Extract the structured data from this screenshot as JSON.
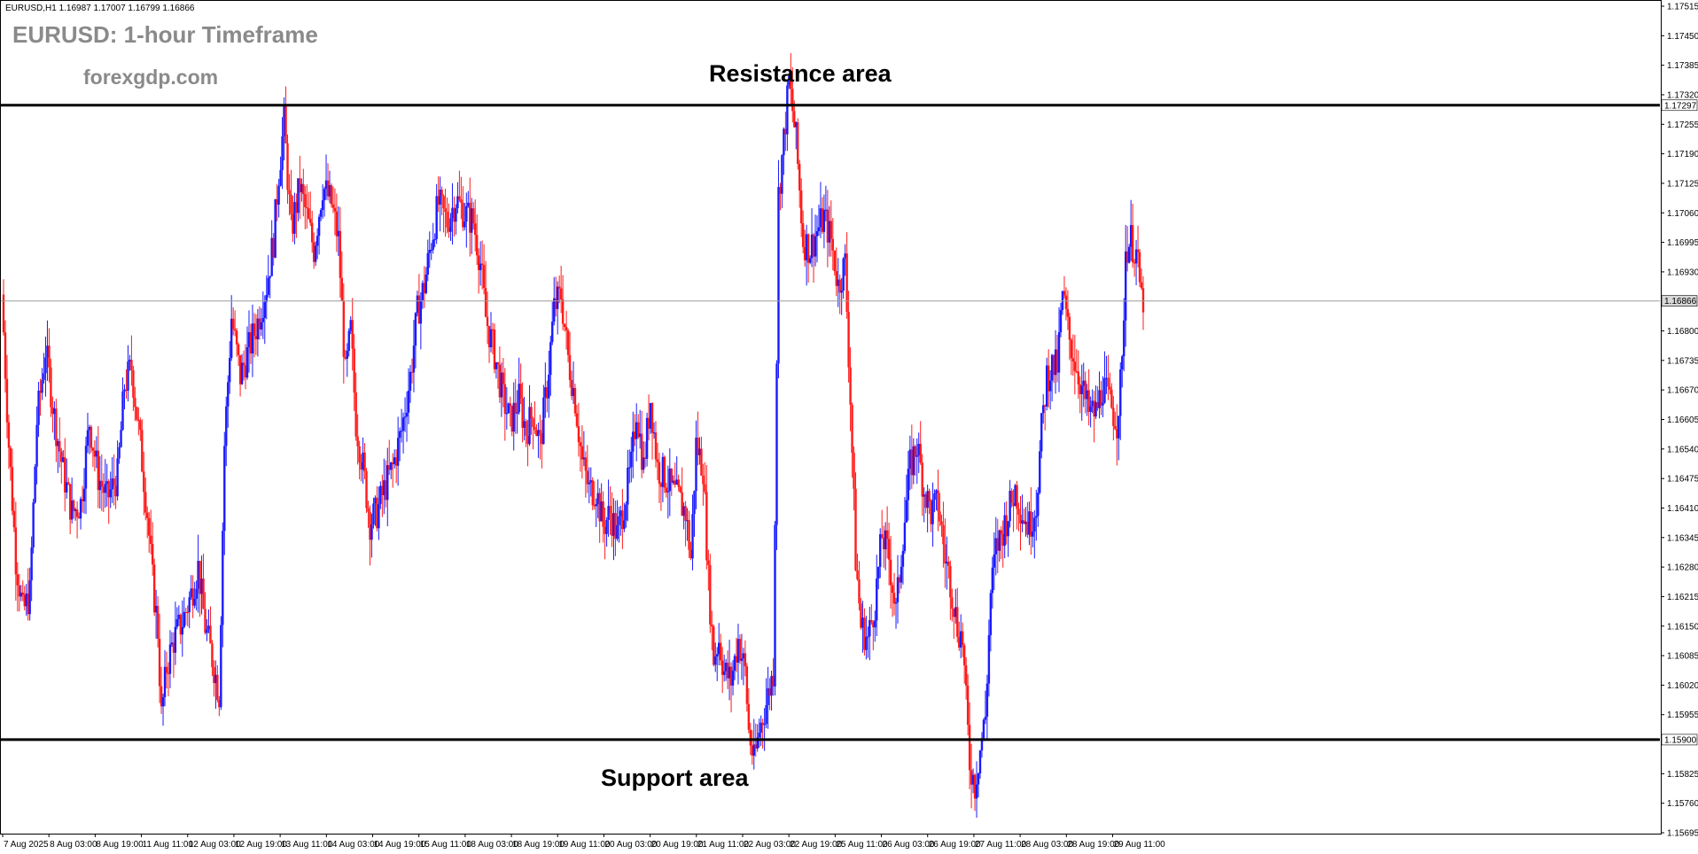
{
  "header": {
    "symbol_info": "EURUSD,H1  1.16987 1.17007 1.16799 1.16866",
    "title": "EURUSD: 1-hour Timeframe",
    "subtitle": "forexgdp.com"
  },
  "annotations": {
    "resistance_label": "Resistance area",
    "support_label": "Support area"
  },
  "colors": {
    "bull_candle": "#1a1aff",
    "bear_candle": "#ff1a1a",
    "level_line": "#000000",
    "current_line": "#9a9a9a",
    "background": "#ffffff",
    "title_text": "#8a8a8a"
  },
  "chart_data": {
    "type": "candlestick",
    "title": "EURUSD: 1-hour Timeframe",
    "symbol": "EURUSD",
    "timeframe": "H1",
    "ohlc_last": {
      "open": 1.16987,
      "high": 1.17007,
      "low": 1.16799,
      "close": 1.16866
    },
    "ylim": [
      1.15695,
      1.17515
    ],
    "y_ticks": [
      "1.17515",
      "1.17450",
      "1.17385",
      "1.17320",
      "1.17255",
      "1.17190",
      "1.17125",
      "1.17060",
      "1.16995",
      "1.16930",
      "1.16800",
      "1.16735",
      "1.16670",
      "1.16605",
      "1.16540",
      "1.16475",
      "1.16410",
      "1.16345",
      "1.16280",
      "1.16215",
      "1.16150",
      "1.16085",
      "1.16020",
      "1.15955",
      "1.15825",
      "1.15760",
      "1.15695"
    ],
    "x_ticks": [
      "7 Aug 2025",
      "8 Aug 03:00",
      "8 Aug 19:00",
      "11 Aug 11:00",
      "12 Aug 03:00",
      "12 Aug 19:00",
      "13 Aug 11:00",
      "14 Aug 03:00",
      "14 Aug 19:00",
      "15 Aug 11:00",
      "18 Aug 03:00",
      "18 Aug 19:00",
      "19 Aug 11:00",
      "20 Aug 03:00",
      "20 Aug 19:00",
      "21 Aug 11:00",
      "22 Aug 03:00",
      "22 Aug 19:00",
      "25 Aug 11:00",
      "26 Aug 03:00",
      "26 Aug 19:00",
      "27 Aug 11:00",
      "28 Aug 03:00",
      "28 Aug 19:00",
      "29 Aug 11:00"
    ],
    "levels": [
      {
        "name": "resistance",
        "price": 1.17297,
        "label": "1.17297"
      },
      {
        "name": "support",
        "price": 1.159,
        "label": "1.15900"
      }
    ],
    "current_price": {
      "price": 1.16866,
      "label": "1.16866"
    },
    "price_path": [
      [
        0,
        1.1688
      ],
      [
        8,
        1.1655
      ],
      [
        16,
        1.163
      ],
      [
        24,
        1.1618
      ],
      [
        32,
        1.1622
      ],
      [
        40,
        1.166
      ],
      [
        50,
        1.1676
      ],
      [
        60,
        1.1661
      ],
      [
        70,
        1.1649
      ],
      [
        80,
        1.164
      ],
      [
        90,
        1.1642
      ],
      [
        100,
        1.166
      ],
      [
        110,
        1.1648
      ],
      [
        120,
        1.1643
      ],
      [
        132,
        1.1648
      ],
      [
        140,
        1.1668
      ],
      [
        148,
        1.1672
      ],
      [
        158,
        1.1655
      ],
      [
        166,
        1.164
      ],
      [
        172,
        1.1625
      ],
      [
        178,
        1.1614
      ],
      [
        182,
        1.1595
      ],
      [
        188,
        1.1606
      ],
      [
        196,
        1.1612
      ],
      [
        206,
        1.1616
      ],
      [
        216,
        1.1622
      ],
      [
        224,
        1.1628
      ],
      [
        232,
        1.1615
      ],
      [
        240,
        1.1608
      ],
      [
        248,
        1.16
      ],
      [
        254,
        1.1655
      ],
      [
        262,
        1.1683
      ],
      [
        272,
        1.167
      ],
      [
        282,
        1.1676
      ],
      [
        292,
        1.1682
      ],
      [
        302,
        1.169
      ],
      [
        310,
        1.17
      ],
      [
        316,
        1.1715
      ],
      [
        322,
        1.1726
      ],
      [
        330,
        1.1702
      ],
      [
        340,
        1.1712
      ],
      [
        348,
        1.1705
      ],
      [
        356,
        1.1698
      ],
      [
        366,
        1.1712
      ],
      [
        376,
        1.1708
      ],
      [
        384,
        1.17
      ],
      [
        392,
        1.167
      ],
      [
        398,
        1.168
      ],
      [
        404,
        1.166
      ],
      [
        412,
        1.165
      ],
      [
        420,
        1.1638
      ],
      [
        428,
        1.164
      ],
      [
        436,
        1.1645
      ],
      [
        446,
        1.165
      ],
      [
        456,
        1.1658
      ],
      [
        466,
        1.167
      ],
      [
        474,
        1.1684
      ],
      [
        482,
        1.169
      ],
      [
        490,
        1.17
      ],
      [
        498,
        1.1708
      ],
      [
        508,
        1.1704
      ],
      [
        518,
        1.1709
      ],
      [
        528,
        1.1706
      ],
      [
        538,
        1.1704
      ],
      [
        546,
        1.1695
      ],
      [
        552,
        1.1683
      ],
      [
        562,
        1.1675
      ],
      [
        572,
        1.1665
      ],
      [
        580,
        1.166
      ],
      [
        590,
        1.1665
      ],
      [
        598,
        1.1658
      ],
      [
        606,
        1.1662
      ],
      [
        614,
        1.1655
      ],
      [
        622,
        1.1668
      ],
      [
        630,
        1.1685
      ],
      [
        638,
        1.1688
      ],
      [
        646,
        1.1674
      ],
      [
        654,
        1.1665
      ],
      [
        662,
        1.1651
      ],
      [
        670,
        1.1645
      ],
      [
        678,
        1.1645
      ],
      [
        686,
        1.1637
      ],
      [
        694,
        1.164
      ],
      [
        702,
        1.1635
      ],
      [
        710,
        1.1642
      ],
      [
        718,
        1.165
      ],
      [
        724,
        1.1663
      ],
      [
        732,
        1.165
      ],
      [
        740,
        1.1665
      ],
      [
        748,
        1.165
      ],
      [
        756,
        1.1648
      ],
      [
        764,
        1.1645
      ],
      [
        772,
        1.1643
      ],
      [
        780,
        1.164
      ],
      [
        786,
        1.163
      ],
      [
        792,
        1.1655
      ],
      [
        800,
        1.165
      ],
      [
        806,
        1.1625
      ],
      [
        812,
        1.1608
      ],
      [
        818,
        1.1612
      ],
      [
        824,
        1.1605
      ],
      [
        832,
        1.1603
      ],
      [
        840,
        1.1612
      ],
      [
        848,
        1.1605
      ],
      [
        852,
        1.1592
      ],
      [
        858,
        1.1585
      ],
      [
        864,
        1.1592
      ],
      [
        872,
        1.1598
      ],
      [
        880,
        1.1605
      ],
      [
        886,
        1.171
      ],
      [
        892,
        1.1722
      ],
      [
        898,
        1.1735
      ],
      [
        906,
        1.1722
      ],
      [
        914,
        1.17
      ],
      [
        922,
        1.1698
      ],
      [
        930,
        1.1702
      ],
      [
        938,
        1.1705
      ],
      [
        946,
        1.17
      ],
      [
        954,
        1.169
      ],
      [
        962,
        1.1695
      ],
      [
        968,
        1.1665
      ],
      [
        974,
        1.163
      ],
      [
        980,
        1.1615
      ],
      [
        988,
        1.1612
      ],
      [
        996,
        1.162
      ],
      [
        1004,
        1.1635
      ],
      [
        1012,
        1.163
      ],
      [
        1020,
        1.1618
      ],
      [
        1028,
        1.1635
      ],
      [
        1036,
        1.165
      ],
      [
        1044,
        1.1655
      ],
      [
        1052,
        1.1645
      ],
      [
        1060,
        1.164
      ],
      [
        1068,
        1.1642
      ],
      [
        1076,
        1.163
      ],
      [
        1082,
        1.1625
      ],
      [
        1090,
        1.1615
      ],
      [
        1096,
        1.1612
      ],
      [
        1100,
        1.1598
      ],
      [
        1104,
        1.1585
      ],
      [
        1110,
        1.158
      ],
      [
        1116,
        1.1588
      ],
      [
        1122,
        1.1595
      ],
      [
        1128,
        1.1622
      ],
      [
        1134,
        1.1632
      ],
      [
        1140,
        1.1635
      ],
      [
        1148,
        1.164
      ],
      [
        1156,
        1.1645
      ],
      [
        1164,
        1.164
      ],
      [
        1172,
        1.1637
      ],
      [
        1180,
        1.1642
      ],
      [
        1186,
        1.1658
      ],
      [
        1192,
        1.167
      ],
      [
        1198,
        1.1672
      ],
      [
        1204,
        1.1672
      ],
      [
        1210,
        1.1688
      ],
      [
        1218,
        1.1678
      ],
      [
        1226,
        1.1672
      ],
      [
        1234,
        1.1666
      ],
      [
        1240,
        1.1662
      ],
      [
        1248,
        1.1662
      ],
      [
        1256,
        1.1668
      ],
      [
        1264,
        1.1664
      ],
      [
        1272,
        1.166
      ],
      [
        1278,
        1.1672
      ],
      [
        1282,
        1.1698
      ],
      [
        1288,
        1.17
      ],
      [
        1294,
        1.1697
      ],
      [
        1300,
        1.1687
      ]
    ]
  }
}
